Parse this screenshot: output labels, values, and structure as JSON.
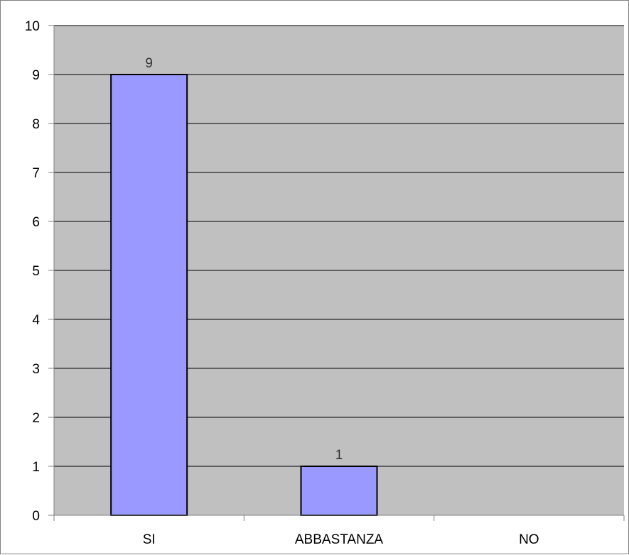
{
  "chart_data": {
    "type": "bar",
    "categories": [
      "SI",
      "ABBASTANZA",
      "NO"
    ],
    "values": [
      9,
      1,
      0
    ],
    "data_labels": [
      "9",
      "1",
      ""
    ],
    "title": "",
    "xlabel": "",
    "ylabel": "",
    "ylim": [
      0,
      10
    ],
    "y_ticks": [
      0,
      1,
      2,
      3,
      4,
      5,
      6,
      7,
      8,
      9,
      10
    ],
    "y_tick_labels": [
      "0",
      "1",
      "2",
      "3",
      "4",
      "5",
      "6",
      "7",
      "8",
      "9",
      "10"
    ],
    "grid": true,
    "legend": "none",
    "colors": {
      "plot_background": "#c0c0c0",
      "bar_fill": "#9999ff",
      "bar_stroke": "#000000",
      "gridline": "#000000",
      "axis": "#808080"
    }
  }
}
